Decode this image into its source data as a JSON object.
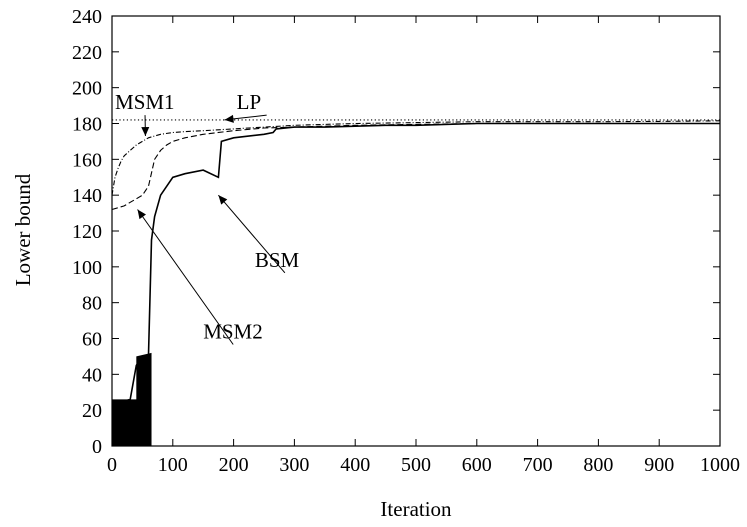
{
  "chart_data": {
    "type": "line",
    "title": "",
    "xlabel": "Iteration",
    "ylabel": "Lower bound",
    "xlim": [
      0,
      1000
    ],
    "ylim": [
      0,
      240
    ],
    "xticks": [
      0,
      100,
      200,
      300,
      400,
      500,
      600,
      700,
      800,
      900,
      1000
    ],
    "yticks": [
      0,
      20,
      40,
      60,
      80,
      100,
      120,
      140,
      160,
      180,
      200,
      220,
      240
    ],
    "grid": false,
    "legend": "none",
    "series": [
      {
        "name": "LP",
        "style": "dotted",
        "x": [
          0,
          1000
        ],
        "y": [
          182,
          182
        ]
      },
      {
        "name": "MSM1",
        "style": "dash-dot",
        "x": [
          0,
          5,
          10,
          15,
          20,
          30,
          40,
          50,
          60,
          70,
          80,
          100,
          120,
          150,
          200,
          250,
          300,
          400,
          500,
          600,
          700,
          800,
          900,
          1000
        ],
        "y": [
          140,
          150,
          155,
          159,
          162,
          165,
          168,
          170,
          172,
          173,
          174,
          175,
          175.5,
          176,
          177,
          178,
          179,
          180,
          180.5,
          181,
          181,
          181,
          181.2,
          181.5
        ]
      },
      {
        "name": "MSM2",
        "style": "dashed",
        "x": [
          0,
          10,
          20,
          30,
          40,
          50,
          60,
          70,
          80,
          90,
          100,
          120,
          150,
          200,
          250,
          300,
          400,
          500,
          600,
          700,
          800,
          900,
          1000
        ],
        "y": [
          132,
          133,
          134,
          136,
          138,
          140,
          145,
          160,
          165,
          168,
          170,
          172,
          174,
          176,
          177.5,
          178,
          179,
          179.5,
          180,
          180,
          180,
          180,
          180
        ]
      },
      {
        "name": "BSM",
        "style": "solid",
        "x": [
          0,
          10,
          20,
          30,
          40,
          50,
          60,
          65,
          70,
          80,
          100,
          120,
          150,
          175,
          180,
          200,
          250,
          265,
          270,
          300,
          350,
          400,
          450,
          500,
          600,
          700,
          800,
          900,
          1000
        ],
        "y": [
          25,
          24,
          25,
          26,
          45,
          50,
          51,
          115,
          128,
          140,
          150,
          152,
          154,
          150,
          170,
          172,
          174,
          175,
          177,
          178,
          178,
          178.5,
          179,
          179,
          180,
          180,
          180,
          180,
          180
        ]
      }
    ],
    "annotations": [
      {
        "text": "MSM1",
        "x": 5,
        "y": 188,
        "points_to": [
          55,
          173
        ]
      },
      {
        "text": "LP",
        "x": 205,
        "y": 188,
        "points_to": [
          185,
          182
        ]
      },
      {
        "text": "BSM",
        "x": 235,
        "y": 100,
        "points_to": [
          175,
          140
        ]
      },
      {
        "text": "MSM2",
        "x": 150,
        "y": 60,
        "points_to": [
          42,
          132
        ]
      }
    ]
  }
}
